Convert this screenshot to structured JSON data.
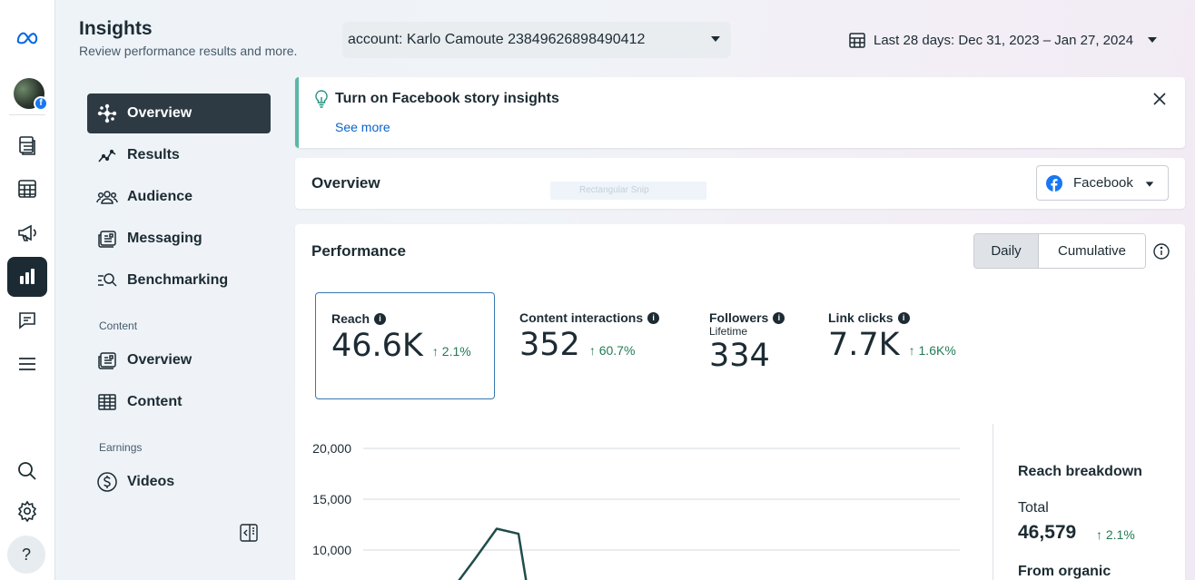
{
  "app": {
    "brand_icon": "meta-logo-icon"
  },
  "rail": {
    "icons": [
      "meta-logo-icon",
      "avatar",
      "pages-icon",
      "table-icon",
      "megaphone-icon",
      "insights-icon",
      "comments-icon",
      "menu-icon",
      "search-icon",
      "settings-icon",
      "help-icon"
    ],
    "help_label": "?"
  },
  "header": {
    "title": "Insights",
    "subtitle": "Review performance results and more.",
    "account": "account: Karlo Camoute 23849626898490412",
    "date_range": "Last 28 days: Dec 31, 2023 – Jan 27, 2024"
  },
  "sidenav": {
    "items": [
      {
        "label": "Overview",
        "icon": "overview-icon",
        "active": true
      },
      {
        "label": "Results",
        "icon": "results-icon"
      },
      {
        "label": "Audience",
        "icon": "audience-icon"
      },
      {
        "label": "Messaging",
        "icon": "messaging-icon"
      },
      {
        "label": "Benchmarking",
        "icon": "benchmarking-icon"
      }
    ],
    "content_section": "Content",
    "content_items": [
      {
        "label": "Overview",
        "icon": "content-overview-icon"
      },
      {
        "label": "Content",
        "icon": "content-table-icon"
      }
    ],
    "earnings_section": "Earnings",
    "earnings_items": [
      {
        "label": "Videos",
        "icon": "dollar-icon"
      }
    ]
  },
  "banner": {
    "title": "Turn on Facebook story insights",
    "link": "See more"
  },
  "overview": {
    "title": "Overview",
    "ghost_text": "Rectangular Snip",
    "platform": "Facebook"
  },
  "performance": {
    "title": "Performance",
    "toggle_daily": "Daily",
    "toggle_cumulative": "Cumulative",
    "metrics": [
      {
        "label": "Reach",
        "value": "46.6K",
        "change": "2.1%",
        "selected": true
      },
      {
        "label": "Content interactions",
        "value": "352",
        "change": "60.7%"
      },
      {
        "label": "Followers",
        "sub": "Lifetime",
        "value": "334"
      },
      {
        "label": "Link clicks",
        "value": "7.7K",
        "change": "1.6K%"
      }
    ]
  },
  "breakdown": {
    "title": "Reach breakdown",
    "total_label": "Total",
    "total_value": "46,579",
    "total_change": "2.1%",
    "organic_label": "From organic"
  },
  "chart_data": {
    "type": "line",
    "yticks": [
      "20,000",
      "15,000",
      "10,000"
    ],
    "ylim": [
      0,
      20000
    ],
    "series": [
      {
        "points": [
          [
            0,
            6000
          ],
          [
            1,
            9000
          ],
          [
            2,
            12100
          ],
          [
            3,
            11600
          ],
          [
            4,
            5000
          ]
        ]
      }
    ],
    "colors": {
      "line": "#1f4d4a",
      "grid": "#d6dade"
    }
  }
}
